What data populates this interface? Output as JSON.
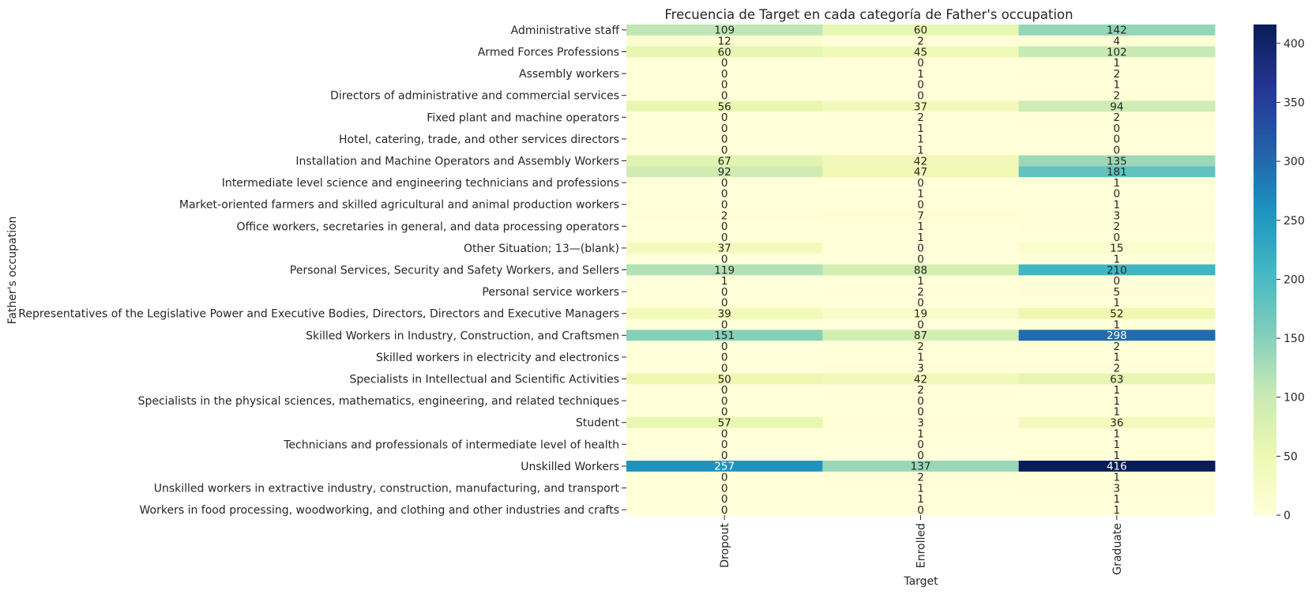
{
  "chart_data": {
    "type": "heatmap",
    "title": "Frecuencia de Target en cada categoría de Father's occupation",
    "xlabel": "Target",
    "ylabel": "Father's occupation",
    "columns": [
      "Dropout",
      "Enrolled",
      "Graduate"
    ],
    "rows": [
      {
        "label": "Administrative staff",
        "values": [
          109,
          60,
          142
        ]
      },
      {
        "label": "",
        "values": [
          12,
          2,
          4
        ]
      },
      {
        "label": "Armed Forces Professions",
        "values": [
          60,
          45,
          102
        ]
      },
      {
        "label": "",
        "values": [
          0,
          0,
          1
        ]
      },
      {
        "label": "Assembly workers",
        "values": [
          0,
          1,
          2
        ]
      },
      {
        "label": "",
        "values": [
          0,
          0,
          1
        ]
      },
      {
        "label": "Directors of administrative and commercial services",
        "values": [
          0,
          0,
          2
        ]
      },
      {
        "label": "",
        "values": [
          56,
          37,
          94
        ]
      },
      {
        "label": "Fixed plant and machine operators",
        "values": [
          0,
          2,
          2
        ]
      },
      {
        "label": "",
        "values": [
          0,
          1,
          0
        ]
      },
      {
        "label": "Hotel, catering, trade, and other services directors",
        "values": [
          0,
          1,
          0
        ]
      },
      {
        "label": "",
        "values": [
          0,
          1,
          0
        ]
      },
      {
        "label": "Installation and Machine Operators and Assembly Workers",
        "values": [
          67,
          42,
          135
        ]
      },
      {
        "label": "",
        "values": [
          92,
          47,
          181
        ]
      },
      {
        "label": "Intermediate level science and engineering technicians and professions",
        "values": [
          0,
          0,
          1
        ]
      },
      {
        "label": "",
        "values": [
          0,
          1,
          0
        ]
      },
      {
        "label": "Market-oriented farmers and skilled agricultural and animal production workers",
        "values": [
          0,
          0,
          1
        ]
      },
      {
        "label": "",
        "values": [
          2,
          7,
          3
        ]
      },
      {
        "label": "Office workers, secretaries in general, and data processing operators",
        "values": [
          0,
          1,
          2
        ]
      },
      {
        "label": "",
        "values": [
          0,
          1,
          0
        ]
      },
      {
        "label": "Other Situation; 13—(blank)",
        "values": [
          37,
          0,
          15
        ]
      },
      {
        "label": "",
        "values": [
          0,
          0,
          1
        ]
      },
      {
        "label": "Personal Services, Security and Safety Workers, and Sellers",
        "values": [
          119,
          88,
          210
        ]
      },
      {
        "label": "",
        "values": [
          1,
          1,
          0
        ]
      },
      {
        "label": "Personal service workers",
        "values": [
          0,
          2,
          5
        ]
      },
      {
        "label": "",
        "values": [
          0,
          0,
          1
        ]
      },
      {
        "label": "Representatives of the Legislative Power and Executive Bodies, Directors, Directors and Executive Managers",
        "values": [
          39,
          19,
          52
        ]
      },
      {
        "label": "",
        "values": [
          0,
          0,
          1
        ]
      },
      {
        "label": "Skilled Workers in Industry, Construction, and Craftsmen",
        "values": [
          151,
          87,
          298
        ]
      },
      {
        "label": "",
        "values": [
          0,
          2,
          2
        ]
      },
      {
        "label": "Skilled workers in electricity and electronics",
        "values": [
          0,
          1,
          1
        ]
      },
      {
        "label": "",
        "values": [
          0,
          3,
          2
        ]
      },
      {
        "label": "Specialists in Intellectual and Scientific Activities",
        "values": [
          50,
          42,
          63
        ]
      },
      {
        "label": "",
        "values": [
          0,
          2,
          1
        ]
      },
      {
        "label": "Specialists in the physical sciences, mathematics, engineering, and related techniques",
        "values": [
          0,
          0,
          1
        ]
      },
      {
        "label": "",
        "values": [
          0,
          0,
          1
        ]
      },
      {
        "label": "Student",
        "values": [
          57,
          3,
          36
        ]
      },
      {
        "label": "",
        "values": [
          0,
          1,
          1
        ]
      },
      {
        "label": "Technicians and professionals of intermediate level of health",
        "values": [
          0,
          0,
          1
        ]
      },
      {
        "label": "",
        "values": [
          0,
          0,
          1
        ]
      },
      {
        "label": "Unskilled Workers",
        "values": [
          257,
          137,
          416
        ]
      },
      {
        "label": "",
        "values": [
          0,
          2,
          1
        ]
      },
      {
        "label": "Unskilled workers in extractive industry, construction, manufacturing, and transport",
        "values": [
          0,
          1,
          3
        ]
      },
      {
        "label": "",
        "values": [
          0,
          1,
          1
        ]
      },
      {
        "label": "Workers in food processing, woodworking, and clothing and other industries and crafts",
        "values": [
          0,
          0,
          1
        ]
      }
    ],
    "colorbar": {
      "range": [
        0,
        416
      ],
      "ticks": [
        0,
        50,
        100,
        150,
        200,
        250,
        300,
        350,
        400
      ]
    },
    "colormap": "YlGnBu",
    "colormap_stops": [
      "#ffffd9",
      "#edf8b1",
      "#c7e9b4",
      "#7fcdbb",
      "#41b6c4",
      "#1d91c0",
      "#225ea8",
      "#253494",
      "#081d58"
    ]
  }
}
